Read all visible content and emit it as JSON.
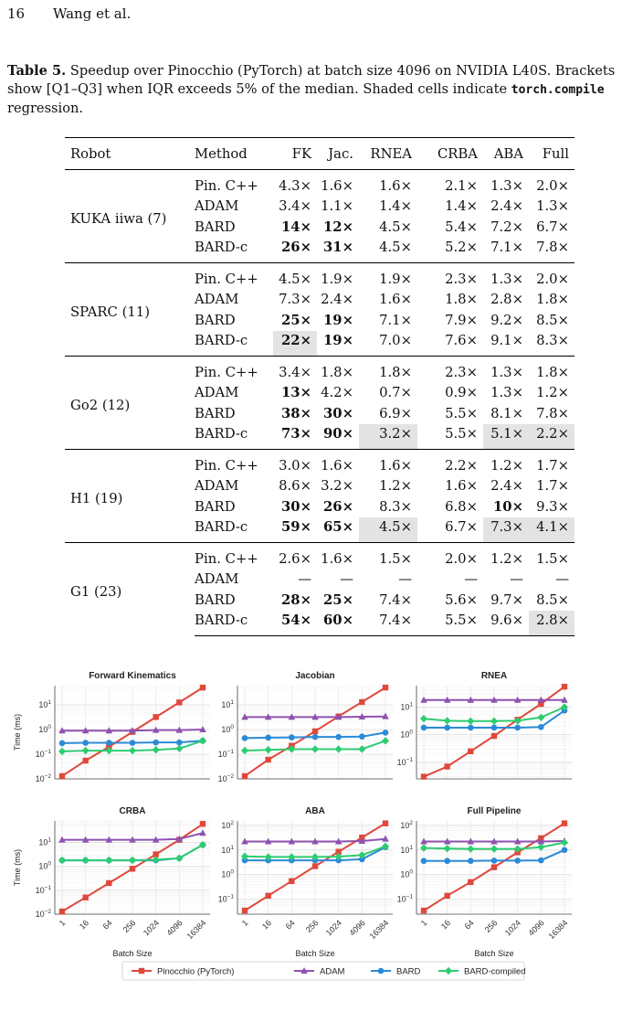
{
  "header": {
    "page_number": "16",
    "authors": "Wang et al."
  },
  "caption": {
    "label": "Table 5.",
    "text_1": " Speedup over Pinocchio (PyTorch) at batch size 4096 on NVIDIA L40S. Brackets show [Q1–Q3] when IQR exceeds 5% of the median. Shaded cells indicate ",
    "code": "torch.compile",
    "text_2": " regression."
  },
  "table": {
    "headers": [
      "Robot",
      "Method",
      "FK",
      "Jac.",
      "RNEA",
      "CRBA",
      "ABA",
      "Full"
    ],
    "groups": [
      {
        "robot": "KUKA iiwa (7)",
        "rows": [
          {
            "method": "Pin. C++",
            "cells": [
              {
                "v": "4.3×"
              },
              {
                "v": "1.6×"
              },
              {
                "v": "1.6×"
              },
              {
                "v": "2.1×"
              },
              {
                "v": "1.3×"
              },
              {
                "v": "2.0×"
              }
            ]
          },
          {
            "method": "ADAM",
            "cells": [
              {
                "v": "3.4×"
              },
              {
                "v": "1.1×"
              },
              {
                "v": "1.4×"
              },
              {
                "v": "1.4×"
              },
              {
                "v": "2.4×"
              },
              {
                "v": "1.3×"
              }
            ]
          },
          {
            "method": "BARD",
            "cells": [
              {
                "v": "14×",
                "b": true
              },
              {
                "v": "12×",
                "b": true
              },
              {
                "v": "4.5×"
              },
              {
                "v": "5.4×"
              },
              {
                "v": "7.2×"
              },
              {
                "v": "6.7×"
              }
            ]
          },
          {
            "method": "BARD-c",
            "cells": [
              {
                "v": "26×",
                "b": true
              },
              {
                "v": "31×",
                "b": true
              },
              {
                "v": "4.5×"
              },
              {
                "v": "5.2×"
              },
              {
                "v": "7.1×"
              },
              {
                "v": "7.8×"
              }
            ]
          }
        ]
      },
      {
        "robot": "SPARC (11)",
        "rows": [
          {
            "method": "Pin. C++",
            "cells": [
              {
                "v": "4.5×"
              },
              {
                "v": "1.9×"
              },
              {
                "v": "1.9×"
              },
              {
                "v": "2.3×"
              },
              {
                "v": "1.3×"
              },
              {
                "v": "2.0×"
              }
            ]
          },
          {
            "method": "ADAM",
            "cells": [
              {
                "v": "7.3×"
              },
              {
                "v": "2.4×"
              },
              {
                "v": "1.6×"
              },
              {
                "v": "1.8×"
              },
              {
                "v": "2.8×"
              },
              {
                "v": "1.8×"
              }
            ]
          },
          {
            "method": "BARD",
            "cells": [
              {
                "v": "25×",
                "b": true
              },
              {
                "v": "19×",
                "b": true
              },
              {
                "v": "7.1×"
              },
              {
                "v": "7.9×"
              },
              {
                "v": "9.2×"
              },
              {
                "v": "8.5×"
              }
            ]
          },
          {
            "method": "BARD-c",
            "cells": [
              {
                "v": "22×",
                "b": true,
                "s": true
              },
              {
                "v": "19×",
                "b": true
              },
              {
                "v": "7.0×"
              },
              {
                "v": "7.6×"
              },
              {
                "v": "9.1×"
              },
              {
                "v": "8.3×"
              }
            ]
          }
        ]
      },
      {
        "robot": "Go2 (12)",
        "rows": [
          {
            "method": "Pin. C++",
            "cells": [
              {
                "v": "3.4×"
              },
              {
                "v": "1.8×"
              },
              {
                "v": "1.8×"
              },
              {
                "v": "2.3×"
              },
              {
                "v": "1.3×"
              },
              {
                "v": "1.8×"
              }
            ]
          },
          {
            "method": "ADAM",
            "cells": [
              {
                "v": "13×",
                "b": true
              },
              {
                "v": "4.2×"
              },
              {
                "v": "0.7×"
              },
              {
                "v": "0.9×"
              },
              {
                "v": "1.3×"
              },
              {
                "v": "1.2×"
              }
            ]
          },
          {
            "method": "BARD",
            "cells": [
              {
                "v": "38×",
                "b": true
              },
              {
                "v": "30×",
                "b": true
              },
              {
                "v": "6.9×"
              },
              {
                "v": "5.5×"
              },
              {
                "v": "8.1×"
              },
              {
                "v": "7.8×"
              }
            ]
          },
          {
            "method": "BARD-c",
            "cells": [
              {
                "v": "73×",
                "b": true
              },
              {
                "v": "90×",
                "b": true
              },
              {
                "v": "3.2×",
                "s": true
              },
              {
                "v": "5.5×"
              },
              {
                "v": "5.1×",
                "s": true
              },
              {
                "v": "2.2×",
                "s": true
              }
            ]
          }
        ]
      },
      {
        "robot": "H1 (19)",
        "rows": [
          {
            "method": "Pin. C++",
            "cells": [
              {
                "v": "3.0×"
              },
              {
                "v": "1.6×"
              },
              {
                "v": "1.6×"
              },
              {
                "v": "2.2×"
              },
              {
                "v": "1.2×"
              },
              {
                "v": "1.7×"
              }
            ]
          },
          {
            "method": "ADAM",
            "cells": [
              {
                "v": "8.6×"
              },
              {
                "v": "3.2×"
              },
              {
                "v": "1.2×"
              },
              {
                "v": "1.6×"
              },
              {
                "v": "2.4×"
              },
              {
                "v": "1.7×"
              }
            ]
          },
          {
            "method": "BARD",
            "cells": [
              {
                "v": "30×",
                "b": true
              },
              {
                "v": "26×",
                "b": true
              },
              {
                "v": "8.3×"
              },
              {
                "v": "6.8×"
              },
              {
                "v": "10×",
                "b": true
              },
              {
                "v": "9.3×"
              }
            ]
          },
          {
            "method": "BARD-c",
            "cells": [
              {
                "v": "59×",
                "b": true
              },
              {
                "v": "65×",
                "b": true
              },
              {
                "v": "4.5×",
                "s": true
              },
              {
                "v": "6.7×"
              },
              {
                "v": "7.3×",
                "s": true
              },
              {
                "v": "4.1×",
                "s": true
              }
            ]
          }
        ]
      },
      {
        "robot": "G1 (23)",
        "rows": [
          {
            "method": "Pin. C++",
            "cells": [
              {
                "v": "2.6×"
              },
              {
                "v": "1.6×"
              },
              {
                "v": "1.5×"
              },
              {
                "v": "2.0×"
              },
              {
                "v": "1.2×"
              },
              {
                "v": "1.5×"
              }
            ]
          },
          {
            "method": "ADAM",
            "cells": [
              {
                "v": "—"
              },
              {
                "v": "—"
              },
              {
                "v": "—"
              },
              {
                "v": "—"
              },
              {
                "v": "—"
              },
              {
                "v": "—"
              }
            ]
          },
          {
            "method": "BARD",
            "cells": [
              {
                "v": "28×",
                "b": true
              },
              {
                "v": "25×",
                "b": true
              },
              {
                "v": "7.4×"
              },
              {
                "v": "5.6×"
              },
              {
                "v": "9.7×"
              },
              {
                "v": "8.5×"
              }
            ]
          },
          {
            "method": "BARD-c",
            "cells": [
              {
                "v": "54×",
                "b": true
              },
              {
                "v": "60×",
                "b": true
              },
              {
                "v": "7.4×"
              },
              {
                "v": "5.5×"
              },
              {
                "v": "9.6×"
              },
              {
                "v": "2.8×",
                "s": true
              }
            ]
          }
        ]
      }
    ]
  },
  "figure": {
    "xlabel": "Batch Size",
    "ylabel": "Time (ms)",
    "legend_position": "bottom-center",
    "series_meta": [
      {
        "name": "Pinocchio (PyTorch)",
        "color": "#e0483b",
        "marker": "square"
      },
      {
        "name": "ADAM",
        "color": "#8e52b0",
        "marker": "triangle"
      },
      {
        "name": "BARD",
        "color": "#2b8ad6",
        "marker": "circle"
      },
      {
        "name": "BARD-compiled",
        "color": "#2ecc71",
        "marker": "diamond"
      }
    ]
  },
  "chart_data": [
    {
      "type": "line",
      "title": "Forward Kinematics",
      "yscale": "log",
      "ylim": [
        0.01,
        60
      ],
      "grid": true,
      "yticks": [
        "10^-2",
        "10^-1",
        "10^0",
        "10^1"
      ],
      "x": [
        1,
        16,
        64,
        256,
        1024,
        4096,
        16384
      ],
      "series": [
        {
          "name": "Pinocchio (PyTorch)",
          "values": [
            0.013,
            0.055,
            0.2,
            0.8,
            3.2,
            12.5,
            50
          ]
        },
        {
          "name": "ADAM",
          "values": [
            0.9,
            0.9,
            0.9,
            0.9,
            0.95,
            0.95,
            1.0
          ]
        },
        {
          "name": "BARD",
          "values": [
            0.28,
            0.29,
            0.29,
            0.29,
            0.3,
            0.3,
            0.35
          ]
        },
        {
          "name": "BARD-compiled",
          "values": [
            0.13,
            0.14,
            0.14,
            0.14,
            0.15,
            0.17,
            0.35
          ]
        }
      ]
    },
    {
      "type": "line",
      "title": "Jacobian",
      "yscale": "log",
      "ylim": [
        0.01,
        60
      ],
      "grid": true,
      "yticks": [
        "10^-2",
        "10^-1",
        "10^0",
        "10^1"
      ],
      "x": [
        1,
        16,
        64,
        256,
        1024,
        4096,
        16384
      ],
      "series": [
        {
          "name": "Pinocchio (PyTorch)",
          "values": [
            0.013,
            0.06,
            0.22,
            0.85,
            3.4,
            13,
            50
          ]
        },
        {
          "name": "ADAM",
          "values": [
            3.2,
            3.2,
            3.2,
            3.2,
            3.2,
            3.3,
            3.4
          ]
        },
        {
          "name": "BARD",
          "values": [
            0.45,
            0.47,
            0.48,
            0.5,
            0.5,
            0.52,
            0.75
          ]
        },
        {
          "name": "BARD-compiled",
          "values": [
            0.14,
            0.15,
            0.16,
            0.16,
            0.16,
            0.16,
            0.35
          ]
        }
      ]
    },
    {
      "type": "line",
      "title": "RNEA",
      "yscale": "log",
      "ylim": [
        0.025,
        60
      ],
      "grid": true,
      "yticks": [
        "10^-1",
        "10^0",
        "10^1"
      ],
      "x": [
        1,
        16,
        64,
        256,
        1024,
        4096,
        16384
      ],
      "series": [
        {
          "name": "Pinocchio (PyTorch)",
          "values": [
            0.03,
            0.07,
            0.25,
            0.9,
            3.5,
            13,
            55
          ]
        },
        {
          "name": "ADAM",
          "values": [
            18,
            18,
            18,
            18,
            18,
            18,
            18
          ]
        },
        {
          "name": "BARD",
          "values": [
            1.8,
            1.8,
            1.8,
            1.8,
            1.8,
            1.9,
            7.5
          ]
        },
        {
          "name": "BARD-compiled",
          "values": [
            3.8,
            3.2,
            3.1,
            3.1,
            3.2,
            4.2,
            10
          ]
        }
      ]
    },
    {
      "type": "line",
      "title": "CRBA",
      "yscale": "log",
      "ylim": [
        0.01,
        80
      ],
      "grid": true,
      "yticks": [
        "10^-2",
        "10^-1",
        "10^0",
        "10^1"
      ],
      "x": [
        1,
        16,
        64,
        256,
        1024,
        4096,
        16384
      ],
      "series": [
        {
          "name": "Pinocchio (PyTorch)",
          "values": [
            0.013,
            0.05,
            0.2,
            0.8,
            3.2,
            13,
            60
          ]
        },
        {
          "name": "ADAM",
          "values": [
            13,
            13,
            13,
            13,
            13,
            14,
            25
          ]
        },
        {
          "name": "BARD",
          "values": [
            1.8,
            1.8,
            1.8,
            1.8,
            1.8,
            2.2,
            8
          ]
        },
        {
          "name": "BARD-compiled",
          "values": [
            1.8,
            1.8,
            1.8,
            1.8,
            1.9,
            2.2,
            8
          ]
        }
      ]
    },
    {
      "type": "line",
      "title": "ABA",
      "yscale": "log",
      "ylim": [
        0.025,
        150
      ],
      "grid": true,
      "yticks": [
        "10^-1",
        "10^0",
        "10^1",
        "10^2"
      ],
      "x": [
        1,
        16,
        64,
        256,
        1024,
        4096,
        16384
      ],
      "series": [
        {
          "name": "Pinocchio (PyTorch)",
          "values": [
            0.035,
            0.14,
            0.55,
            2.2,
            8.5,
            32,
            120
          ]
        },
        {
          "name": "ADAM",
          "values": [
            22,
            22,
            22,
            22,
            22,
            23,
            28
          ]
        },
        {
          "name": "BARD",
          "values": [
            3.8,
            3.8,
            3.8,
            3.8,
            3.8,
            4.2,
            13
          ]
        },
        {
          "name": "BARD-compiled",
          "values": [
            5.5,
            5.2,
            5.2,
            5.2,
            5.4,
            6.2,
            14
          ]
        }
      ]
    },
    {
      "type": "line",
      "title": "Full Pipeline",
      "yscale": "log",
      "ylim": [
        0.025,
        150
      ],
      "grid": true,
      "yticks": [
        "10^-1",
        "10^0",
        "10^1",
        "10^2"
      ],
      "x": [
        1,
        16,
        64,
        256,
        1024,
        4096,
        16384
      ],
      "series": [
        {
          "name": "Pinocchio (PyTorch)",
          "values": [
            0.035,
            0.14,
            0.5,
            2.0,
            8,
            30,
            120
          ]
        },
        {
          "name": "ADAM",
          "values": [
            22,
            22,
            22,
            22,
            22,
            22,
            23
          ]
        },
        {
          "name": "BARD",
          "values": [
            3.6,
            3.6,
            3.6,
            3.7,
            3.7,
            3.8,
            10
          ]
        },
        {
          "name": "BARD-compiled",
          "values": [
            12,
            11.5,
            11,
            11,
            11,
            13,
            20
          ]
        }
      ]
    }
  ]
}
